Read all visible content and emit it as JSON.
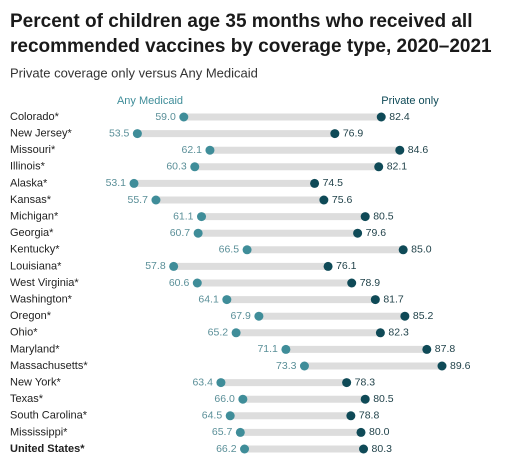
{
  "chart_data": {
    "type": "dumbbell",
    "title": [
      "Percent of children age 35 months who received all",
      "recommended vaccines by coverage type, 2020–2021"
    ],
    "subtitle": "Private coverage only versus Any Medicaid",
    "categories": [
      "Colorado*",
      "New Jersey*",
      "Missouri*",
      "Illinois*",
      "Alaska*",
      "Kansas*",
      "Michigan*",
      "Georgia*",
      "Kentucky*",
      "Louisiana*",
      "West Virginia*",
      "Washington*",
      "Oregon*",
      "Ohio*",
      "Maryland*",
      "Massachusetts*",
      "New York*",
      "Texas*",
      "South Carolina*",
      "Mississippi*",
      "United States*"
    ],
    "series": [
      {
        "name": "Any Medicaid",
        "color": "#3f8d99",
        "values": [
          59.0,
          53.5,
          62.1,
          60.3,
          53.1,
          55.7,
          61.1,
          60.7,
          66.5,
          57.8,
          60.6,
          64.1,
          67.9,
          65.2,
          71.1,
          73.3,
          63.4,
          66.0,
          64.5,
          65.7,
          66.2
        ],
        "value_labels": [
          "59.0",
          "53.5",
          "62.1",
          "60.3",
          "53.1",
          "55.7",
          "61.1",
          "60.7",
          "66.5",
          "57.8",
          "60.6",
          "64.1",
          "67.9",
          "65.2",
          "71.1",
          "73.3",
          "63.4",
          "66.0",
          "64.5",
          "65.7",
          "66.2"
        ]
      },
      {
        "name": "Private only",
        "color": "#0f4a57",
        "values": [
          82.4,
          76.9,
          84.6,
          82.1,
          74.5,
          75.6,
          80.5,
          79.6,
          85.0,
          76.1,
          78.9,
          81.7,
          85.2,
          82.3,
          87.8,
          89.6,
          78.3,
          80.5,
          78.8,
          80.0,
          80.3
        ],
        "value_labels": [
          "82.4",
          "76.9",
          "84.6",
          "82.1",
          "74.5",
          "75.6",
          "80.5",
          "79.6",
          "85.0",
          "76.1",
          "78.9",
          "81.7",
          "85.2",
          "82.3",
          "87.8",
          "89.6",
          "78.3",
          "80.5",
          "78.8",
          "80.0",
          "80.3"
        ]
      }
    ]
  }
}
